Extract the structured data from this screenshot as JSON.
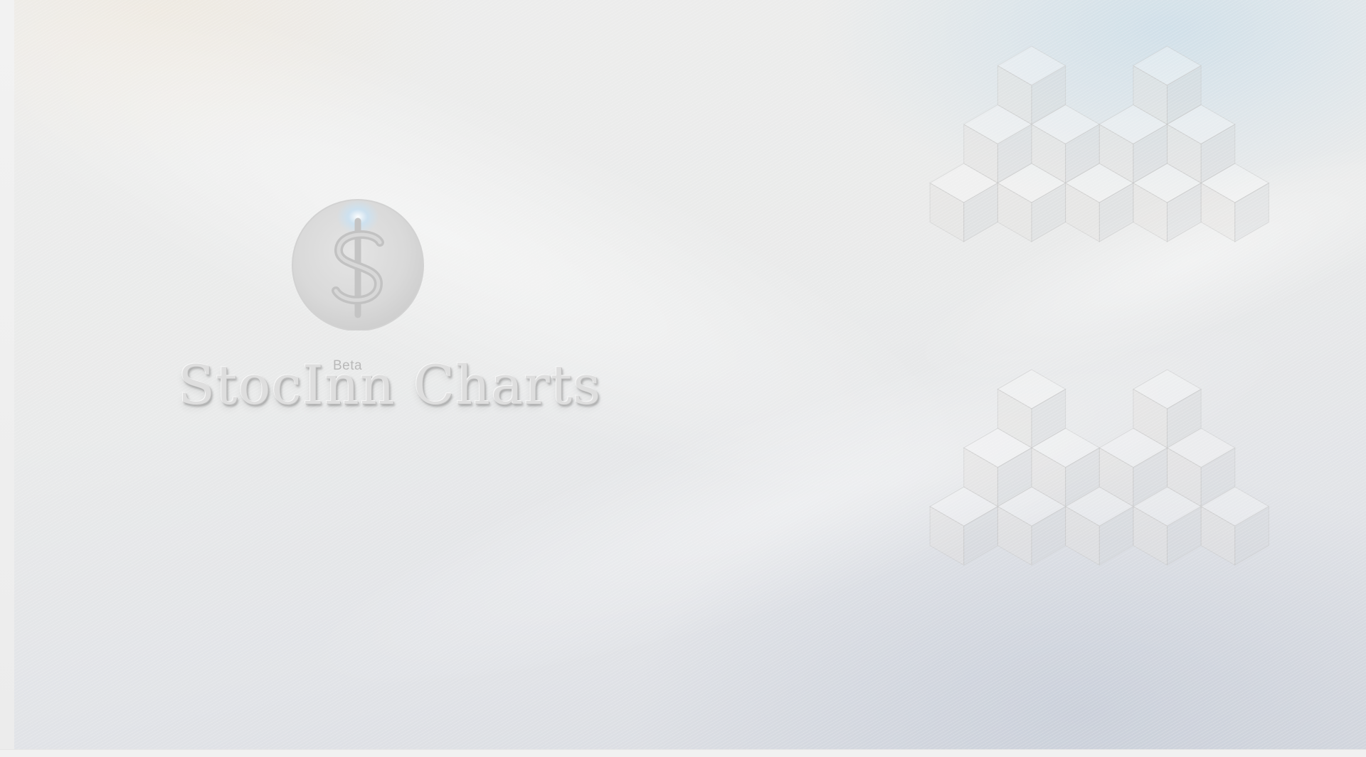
{
  "splash": {
    "brand_name": "StocInn Charts",
    "badge": "Beta",
    "emblem_icon": "dollar-sign-icon"
  },
  "colors": {
    "background": "#e9eaea",
    "brand_text": "#dedede",
    "badge_text": "#b9b9b9",
    "emblem_glow": "#c9e2f4"
  }
}
